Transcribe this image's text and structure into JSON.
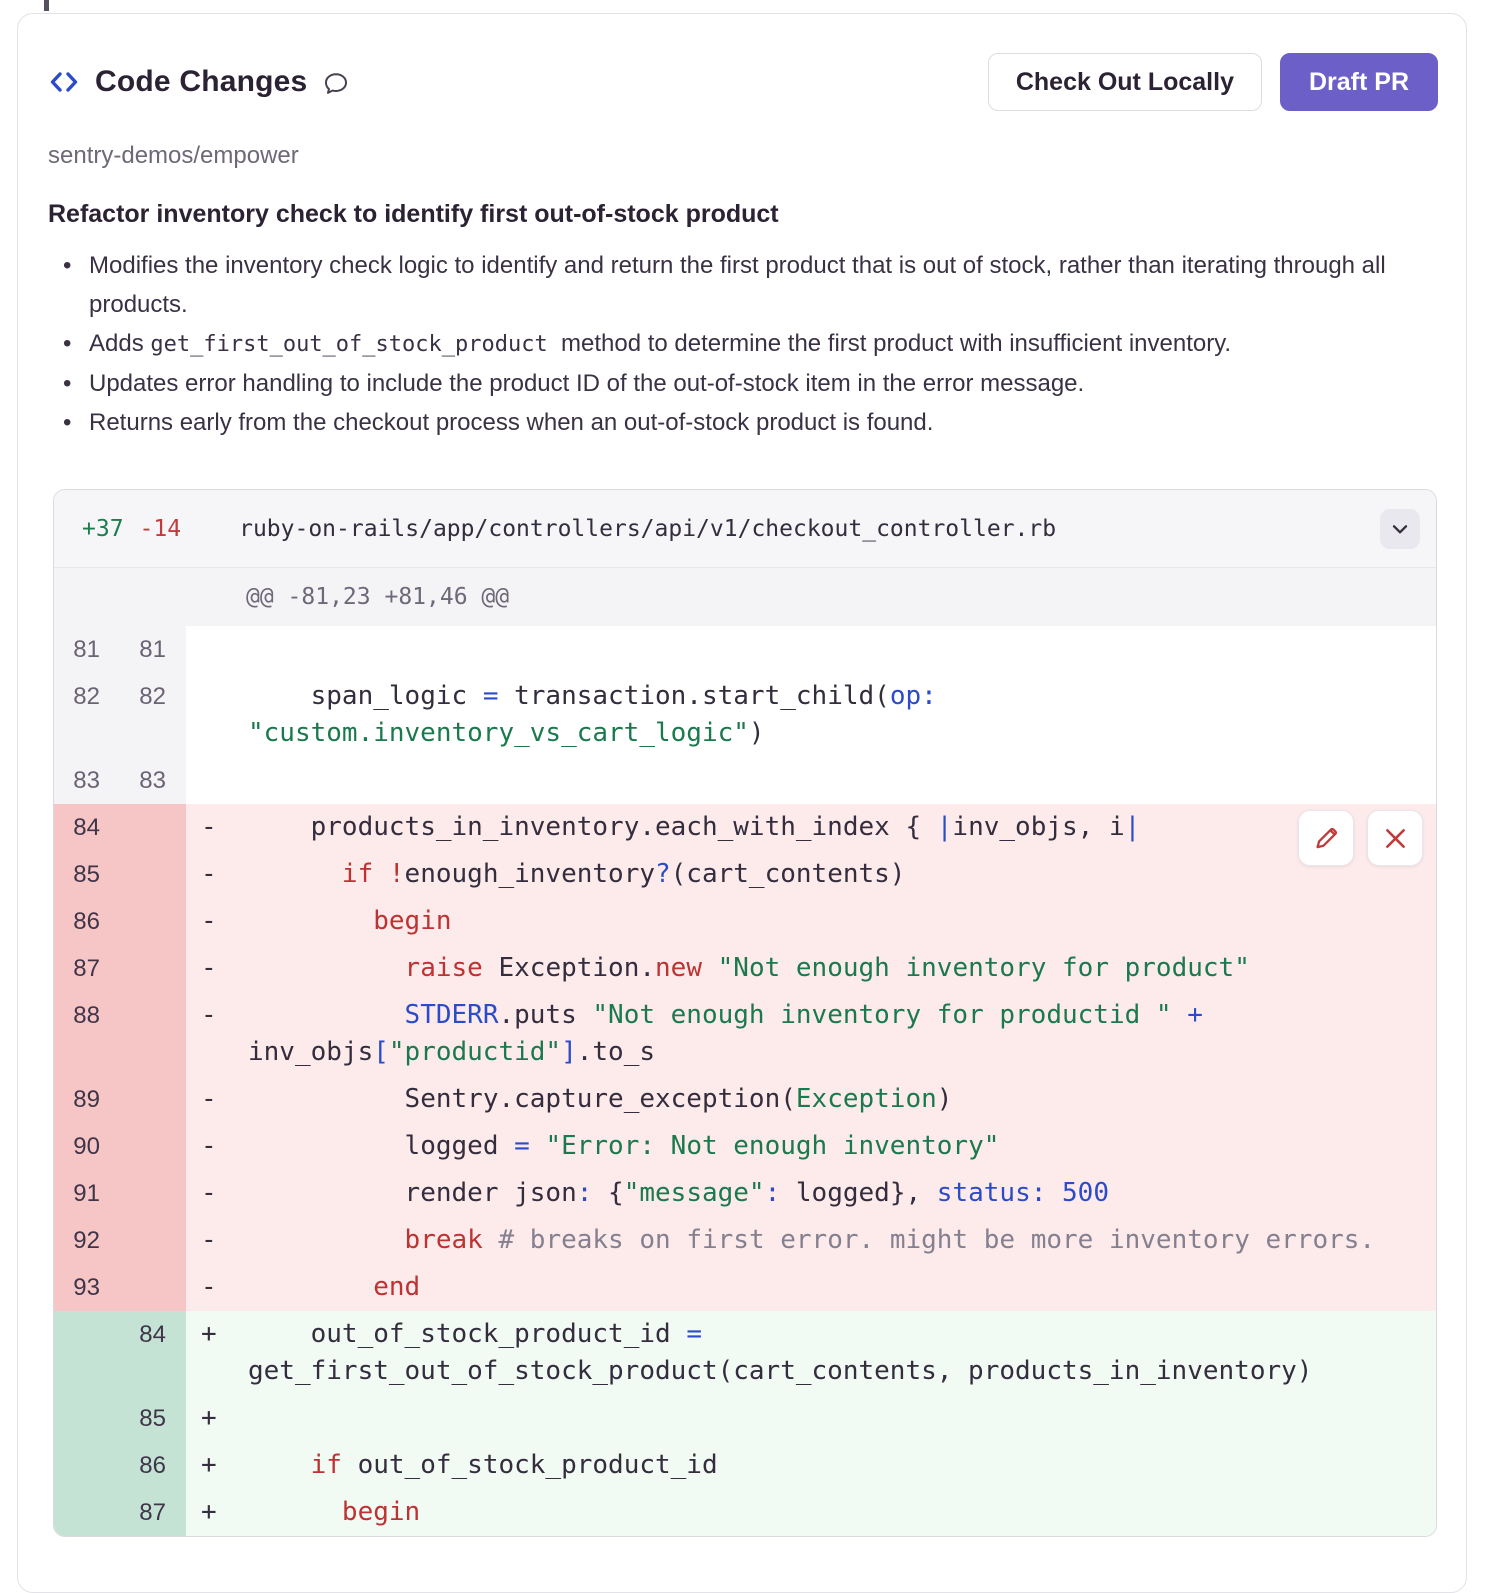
{
  "header": {
    "title": "Code Changes",
    "check_out_label": "Check Out Locally",
    "draft_pr_label": "Draft PR",
    "icons": [
      "code-brackets-icon",
      "comment-bubble-icon"
    ]
  },
  "repo": "sentry-demos/empower",
  "summary": {
    "title": "Refactor inventory check to identify first out-of-stock product",
    "bullets": [
      [
        {
          "t": "Modifies the inventory check logic to identify and return the first product that is out of stock, rather than iterating through all products.",
          "c": "text"
        }
      ],
      [
        {
          "t": "Adds ",
          "c": "text"
        },
        {
          "t": " get_first_out_of_stock_product ",
          "c": "code"
        },
        {
          "t": " method to determine the first product with insufficient inventory.",
          "c": "text"
        }
      ],
      [
        {
          "t": "Updates error handling to include the product ID of the out-of-stock item in the error message.",
          "c": "text"
        }
      ],
      [
        {
          "t": "Returns early from the checkout process when an out-of-stock product is found.",
          "c": "text"
        }
      ]
    ]
  },
  "diff": {
    "additions": "+37",
    "deletions": "-14",
    "file_path": "ruby-on-rails/app/controllers/api/v1/checkout_controller.rb",
    "hunk_header": "@@ -81,23 +81,46 @@",
    "icons": [
      "chevron-down-icon",
      "pencil-icon",
      "x-icon"
    ],
    "colors": {
      "accent": "#6c5fc7",
      "added_gutter": "#c5e3d4",
      "added_line": "#f1faf3",
      "removed_gutter": "#f6c5c5",
      "removed_line": "#fdeaea",
      "keyword": "#bd3333",
      "string": "#1b7a4d",
      "operator": "#2b4bc8",
      "comment": "#85808f"
    },
    "rows": [
      {
        "type": "ctx",
        "old": "81",
        "new": "81",
        "marker": "",
        "segments": []
      },
      {
        "type": "ctx",
        "old": "82",
        "new": "82",
        "marker": "",
        "segments": [
          {
            "t": "    span_logic ",
            "c": "p"
          },
          {
            "t": "=",
            "c": "b"
          },
          {
            "t": " transaction.start_child(",
            "c": "p"
          },
          {
            "t": "op:",
            "c": "b"
          },
          {
            "t": " ",
            "c": "p"
          },
          {
            "t": "\"custom.inventory_vs_cart_logic\"",
            "c": "s"
          },
          {
            "t": ")",
            "c": "p"
          }
        ]
      },
      {
        "type": "ctx",
        "old": "83",
        "new": "83",
        "marker": "",
        "segments": []
      },
      {
        "type": "rm",
        "old": "84",
        "new": "",
        "marker": "-",
        "segments": [
          {
            "t": "    products_in_inventory.each_with_index { ",
            "c": "p"
          },
          {
            "t": "|",
            "c": "b"
          },
          {
            "t": "inv_objs, i",
            "c": "p"
          },
          {
            "t": "|",
            "c": "b"
          }
        ]
      },
      {
        "type": "rm",
        "old": "85",
        "new": "",
        "marker": "-",
        "segments": [
          {
            "t": "      ",
            "c": "p"
          },
          {
            "t": "if",
            "c": "k"
          },
          {
            "t": " ",
            "c": "p"
          },
          {
            "t": "!",
            "c": "k"
          },
          {
            "t": "enough_inventory",
            "c": "p"
          },
          {
            "t": "?",
            "c": "b"
          },
          {
            "t": "(cart_contents)",
            "c": "p"
          }
        ]
      },
      {
        "type": "rm",
        "old": "86",
        "new": "",
        "marker": "-",
        "segments": [
          {
            "t": "        ",
            "c": "p"
          },
          {
            "t": "begin",
            "c": "k"
          }
        ]
      },
      {
        "type": "rm",
        "old": "87",
        "new": "",
        "marker": "-",
        "segments": [
          {
            "t": "          ",
            "c": "p"
          },
          {
            "t": "raise",
            "c": "k"
          },
          {
            "t": " Exception.",
            "c": "p"
          },
          {
            "t": "new",
            "c": "k"
          },
          {
            "t": " ",
            "c": "p"
          },
          {
            "t": "\"Not enough inventory for product\"",
            "c": "s"
          }
        ]
      },
      {
        "type": "rm",
        "old": "88",
        "new": "",
        "marker": "-",
        "segments": [
          {
            "t": "          ",
            "c": "p"
          },
          {
            "t": "STDERR",
            "c": "b"
          },
          {
            "t": ".puts ",
            "c": "p"
          },
          {
            "t": "\"Not enough inventory for productid \"",
            "c": "s"
          },
          {
            "t": " ",
            "c": "p"
          },
          {
            "t": "+",
            "c": "b"
          },
          {
            "t": " inv_objs",
            "c": "p"
          },
          {
            "t": "[",
            "c": "b"
          },
          {
            "t": "\"productid\"",
            "c": "s"
          },
          {
            "t": "]",
            "c": "b"
          },
          {
            "t": ".to_s",
            "c": "p"
          }
        ]
      },
      {
        "type": "rm",
        "old": "89",
        "new": "",
        "marker": "-",
        "segments": [
          {
            "t": "          Sentry.capture_exception(",
            "c": "p"
          },
          {
            "t": "Exception",
            "c": "s"
          },
          {
            "t": ")",
            "c": "p"
          }
        ]
      },
      {
        "type": "rm",
        "old": "90",
        "new": "",
        "marker": "-",
        "segments": [
          {
            "t": "          logged ",
            "c": "p"
          },
          {
            "t": "=",
            "c": "b"
          },
          {
            "t": " ",
            "c": "p"
          },
          {
            "t": "\"Error: Not enough inventory\"",
            "c": "s"
          }
        ]
      },
      {
        "type": "rm",
        "old": "91",
        "new": "",
        "marker": "-",
        "segments": [
          {
            "t": "          render json",
            "c": "p"
          },
          {
            "t": ":",
            "c": "b"
          },
          {
            "t": " {",
            "c": "p"
          },
          {
            "t": "\"message\"",
            "c": "s"
          },
          {
            "t": ":",
            "c": "b"
          },
          {
            "t": " logged}, ",
            "c": "p"
          },
          {
            "t": "status:",
            "c": "b"
          },
          {
            "t": " ",
            "c": "p"
          },
          {
            "t": "500",
            "c": "b"
          }
        ]
      },
      {
        "type": "rm",
        "old": "92",
        "new": "",
        "marker": "-",
        "segments": [
          {
            "t": "          ",
            "c": "p"
          },
          {
            "t": "break",
            "c": "k"
          },
          {
            "t": " ",
            "c": "p"
          },
          {
            "t": "# breaks on first error. might be more inventory errors.",
            "c": "c"
          }
        ]
      },
      {
        "type": "rm",
        "old": "93",
        "new": "",
        "marker": "-",
        "segments": [
          {
            "t": "        ",
            "c": "p"
          },
          {
            "t": "end",
            "c": "k"
          }
        ]
      },
      {
        "type": "add",
        "old": "",
        "new": "84",
        "marker": "+",
        "segments": [
          {
            "t": "    out_of_stock_product_id ",
            "c": "p"
          },
          {
            "t": "=",
            "c": "b"
          },
          {
            "t": " get_first_out_of_stock_product(cart_contents, products_in_inventory)",
            "c": "p"
          }
        ]
      },
      {
        "type": "add",
        "old": "",
        "new": "85",
        "marker": "+",
        "segments": []
      },
      {
        "type": "add",
        "old": "",
        "new": "86",
        "marker": "+",
        "segments": [
          {
            "t": "    ",
            "c": "p"
          },
          {
            "t": "if",
            "c": "k"
          },
          {
            "t": " out_of_stock_product_id",
            "c": "p"
          }
        ]
      },
      {
        "type": "add",
        "old": "",
        "new": "87",
        "marker": "+",
        "segments": [
          {
            "t": "      ",
            "c": "p"
          },
          {
            "t": "begin",
            "c": "k"
          }
        ]
      }
    ]
  }
}
